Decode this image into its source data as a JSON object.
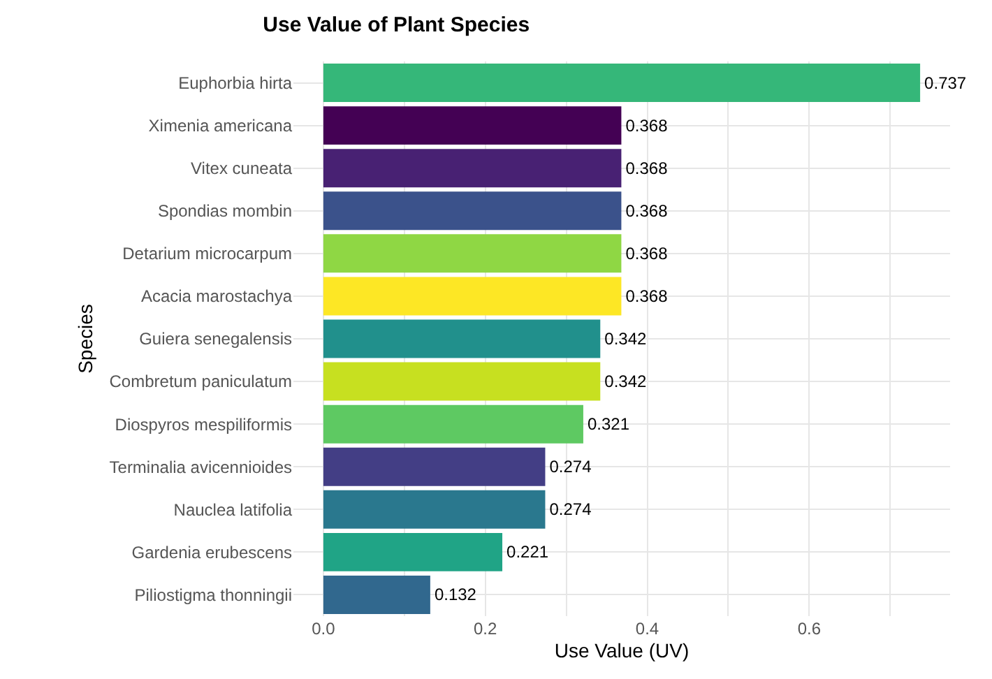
{
  "chart_data": {
    "type": "bar",
    "orientation": "horizontal",
    "title": "Use Value of Plant Species",
    "xlabel": "Use Value (UV)",
    "ylabel": "Species",
    "categories": [
      "Euphorbia hirta",
      "Ximenia americana",
      "Vitex cuneata",
      "Spondias mombin",
      "Detarium microcarpum",
      "Acacia marostachya",
      "Guiera senegalensis",
      "Combretum paniculatum",
      "Diospyros mespiliformis",
      "Terminalia avicennioides",
      "Nauclea latifolia",
      "Gardenia erubescens",
      "Piliostigma thonningii"
    ],
    "values": [
      0.737,
      0.368,
      0.368,
      0.368,
      0.368,
      0.368,
      0.342,
      0.342,
      0.321,
      0.274,
      0.274,
      0.221,
      0.132
    ],
    "colors": [
      "#35b779",
      "#440154",
      "#482173",
      "#3b528b",
      "#8fd744",
      "#fde725",
      "#21908c",
      "#c7e020",
      "#5ec962",
      "#433e85",
      "#2a788e",
      "#20a486",
      "#31688e"
    ],
    "data_labels": true,
    "xlim": [
      -0.037,
      0.774
    ],
    "xticks": [
      {
        "value": 0,
        "label": "0.0"
      },
      {
        "value": 0.1,
        "label": null
      },
      {
        "value": 0.2,
        "label": "0.2"
      },
      {
        "value": 0.3,
        "label": null
      },
      {
        "value": 0.4,
        "label": "0.4"
      },
      {
        "value": 0.5,
        "label": null
      },
      {
        "value": 0.6,
        "label": "0.6"
      },
      {
        "value": 0.7,
        "label": null
      }
    ],
    "grid": true
  }
}
